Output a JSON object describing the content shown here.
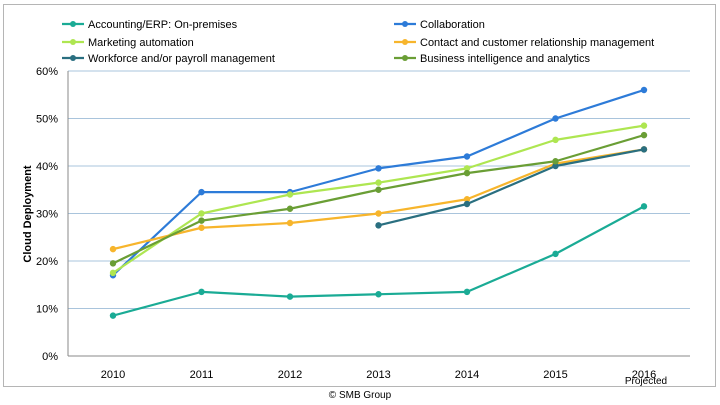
{
  "chart_data": {
    "type": "line",
    "categories": [
      "2010",
      "2011",
      "2012",
      "2013",
      "2014",
      "2015",
      "2016"
    ],
    "category_note": "Projected",
    "ylabel": "Cloud Deployment",
    "ylim": [
      0,
      60
    ],
    "yticks": [
      "0%",
      "10%",
      "20%",
      "30%",
      "40%",
      "50%",
      "60%"
    ],
    "grid": true,
    "legend_position": "top",
    "series": [
      {
        "name": "Accounting/ERP: On-premises",
        "color": "#1aab95",
        "values": [
          8.5,
          13.5,
          12.5,
          13,
          13.5,
          21.5,
          31.5
        ]
      },
      {
        "name": "Collaboration",
        "color": "#2d7bd8",
        "values": [
          17,
          34.5,
          34.5,
          39.5,
          42,
          50,
          56
        ]
      },
      {
        "name": "Marketing automation",
        "color": "#aee651",
        "values": [
          17.5,
          30,
          34,
          36.5,
          39.5,
          45.5,
          48.5
        ]
      },
      {
        "name": "Contact and customer relationship management",
        "color": "#f7b52c",
        "values": [
          22.5,
          27,
          28,
          30,
          33,
          40.5,
          43.5
        ]
      },
      {
        "name": "Workforce and/or payroll management",
        "color": "#2a6f80",
        "values": [
          null,
          null,
          null,
          27.5,
          32,
          40,
          43.5
        ]
      },
      {
        "name": "Business intelligence and analytics",
        "color": "#6a9e35",
        "values": [
          19.5,
          28.5,
          31,
          35,
          38.5,
          41,
          46.5
        ]
      }
    ]
  },
  "footer": {
    "copyright": "© SMB Group"
  }
}
